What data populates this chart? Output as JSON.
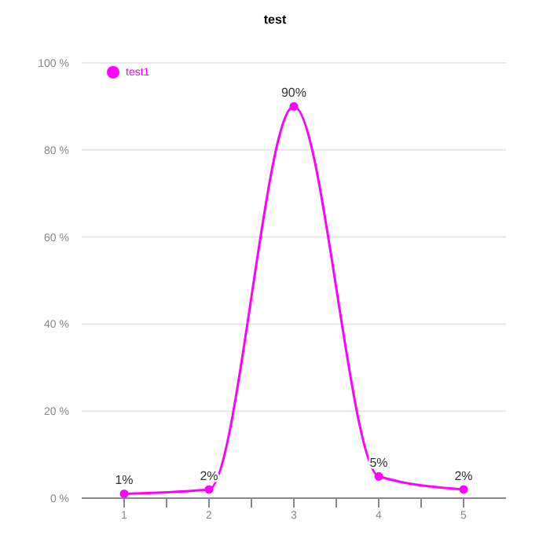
{
  "chart_data": {
    "type": "line",
    "title": "test",
    "x": [
      1,
      2,
      3,
      4,
      5
    ],
    "series": [
      {
        "name": "test1",
        "color": "#ff00ff",
        "values": [
          1,
          2,
          90,
          5,
          2
        ],
        "value_labels": [
          "1%",
          "2%",
          "90%",
          "5%",
          "2%"
        ]
      }
    ],
    "xlim": [
      0.5,
      5.5
    ],
    "xticks": [
      1,
      {
        "value": 1.5,
        "label": null
      },
      2,
      {
        "value": 2.5,
        "label": null
      },
      3,
      {
        "value": 3.5,
        "label": null
      },
      4,
      {
        "value": 4.5,
        "label": null
      },
      5
    ],
    "ylim": [
      0,
      100
    ],
    "yticks": [
      {
        "value": 0,
        "label": "0 %"
      },
      {
        "value": 20,
        "label": "20 %"
      },
      {
        "value": 40,
        "label": "40 %"
      },
      {
        "value": 60,
        "label": "60 %"
      },
      {
        "value": 80,
        "label": "80 %"
      },
      {
        "value": 100,
        "label": "100 %"
      }
    ],
    "grid": "y",
    "legend": "top left",
    "marker": "circle",
    "line_style": "solid"
  }
}
